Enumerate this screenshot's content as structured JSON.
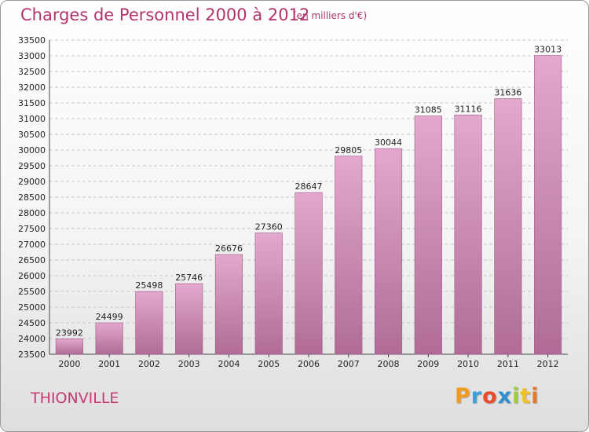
{
  "header": {
    "title": "Charges de Personnel 2000 à 2012",
    "subtitle": "(en milliers d'€)"
  },
  "footer": {
    "city": "THIONVILLE",
    "brand_letters": [
      "P",
      "r",
      "o",
      "x",
      "i",
      "t",
      "i"
    ],
    "brand_colors": [
      "#f29a1e",
      "#3aa0d8",
      "#e84a2a",
      "#2f8fd0",
      "#9ccd3a",
      "#f2c21e",
      "#e9772a"
    ]
  },
  "colors": {
    "bar_top": "#e3a8cd",
    "bar_bottom": "#b06c97",
    "grid": "#c8c8c8",
    "accent": "#b0336b"
  },
  "chart_data": {
    "type": "bar",
    "categories": [
      "2000",
      "2001",
      "2002",
      "2003",
      "2004",
      "2005",
      "2006",
      "2007",
      "2008",
      "2009",
      "2010",
      "2011",
      "2012"
    ],
    "values": [
      23992,
      24499,
      25498,
      25746,
      26676,
      27360,
      28647,
      29805,
      30044,
      31085,
      31116,
      31636,
      33013
    ],
    "ylim": [
      23500,
      33500
    ],
    "ytick_step": 500,
    "grid": true,
    "legend": "none"
  }
}
